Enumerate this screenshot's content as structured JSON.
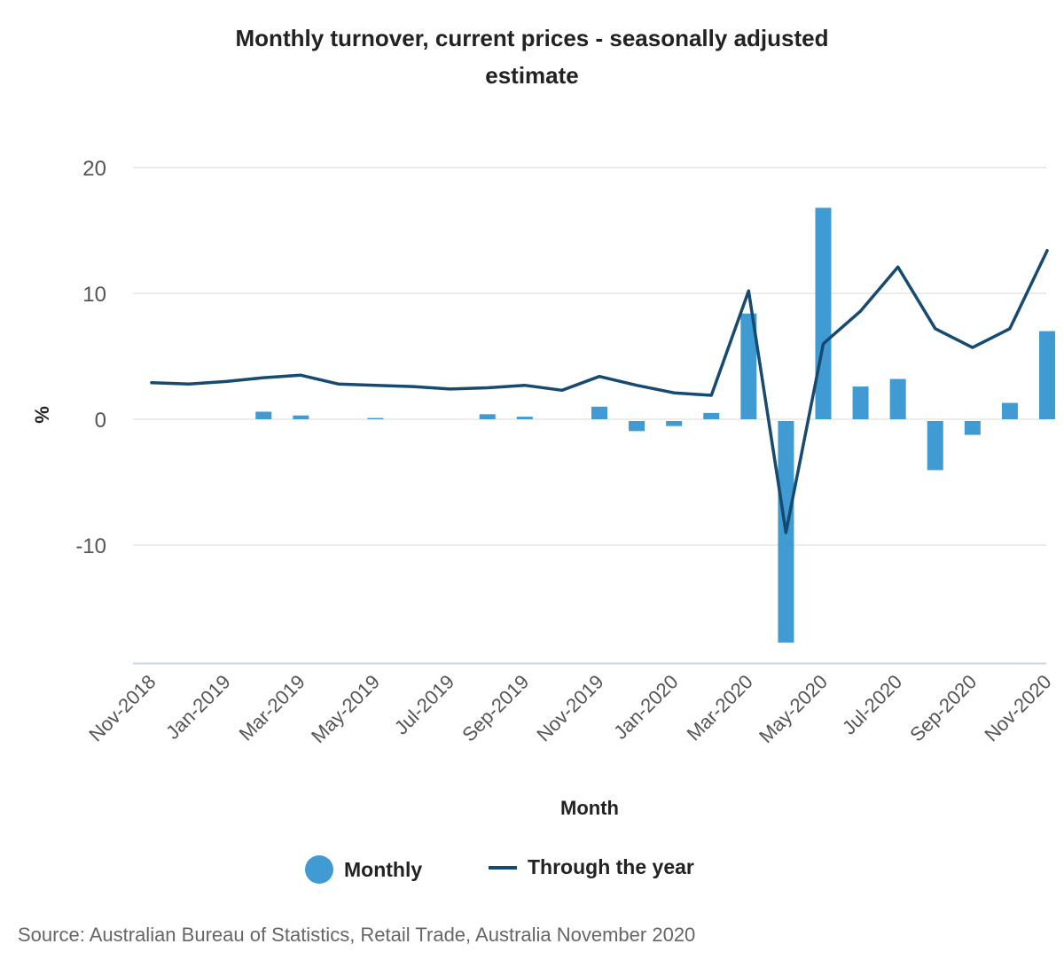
{
  "chart_data": {
    "type": "bar",
    "title": "Monthly turnover, current prices - seasonally adjusted estimate",
    "xlabel": "Month",
    "ylabel": "%",
    "ylim": [
      -19.4,
      20
    ],
    "yticks": [
      20,
      10,
      0,
      -10
    ],
    "grid": true,
    "legend_position": "bottom",
    "categories": [
      "Nov-2018",
      "Dec-2018",
      "Jan-2019",
      "Feb-2019",
      "Mar-2019",
      "Apr-2019",
      "May-2019",
      "Jun-2019",
      "Jul-2019",
      "Aug-2019",
      "Sep-2019",
      "Oct-2019",
      "Nov-2019",
      "Dec-2019",
      "Jan-2020",
      "Feb-2020",
      "Mar-2020",
      "Apr-2020",
      "May-2020",
      "Jun-2020",
      "Jul-2020",
      "Aug-2020",
      "Sep-2020",
      "Oct-2020",
      "Nov-2020"
    ],
    "x_tick_labels": [
      "Nov-2018",
      "Jan-2019",
      "Mar-2019",
      "May-2019",
      "Jul-2019",
      "Sep-2019",
      "Nov-2019",
      "Jan-2020",
      "Mar-2020",
      "May-2020",
      "Jul-2020",
      "Sep-2020",
      "Nov-2020"
    ],
    "series": [
      {
        "name": "Monthly",
        "type": "bar",
        "color": "#3f9bd1",
        "values": [
          0.0,
          0.0,
          0.0,
          0.6,
          0.3,
          0.0,
          0.1,
          0.0,
          0.0,
          0.4,
          0.2,
          0.0,
          1.0,
          -0.8,
          -0.4,
          0.5,
          8.4,
          -17.6,
          16.8,
          2.6,
          3.2,
          -3.9,
          -1.1,
          1.3,
          7.0
        ]
      },
      {
        "name": "Through the year",
        "type": "line",
        "color": "#164a70",
        "values": [
          2.9,
          2.8,
          3.0,
          3.3,
          3.5,
          2.8,
          2.7,
          2.6,
          2.4,
          2.5,
          2.7,
          2.3,
          3.4,
          2.7,
          2.1,
          1.9,
          10.2,
          -9.0,
          6.0,
          8.6,
          12.1,
          7.2,
          5.7,
          7.2,
          13.4
        ]
      }
    ]
  },
  "title_line1": "Monthly turnover, current prices - seasonally adjusted",
  "title_line2": "estimate",
  "source": "Source: Australian Bureau of Statistics, Retail Trade, Australia November 2020",
  "colors": {
    "gridline": "#e6e6e6",
    "axis_line": "#ccd6eb"
  }
}
